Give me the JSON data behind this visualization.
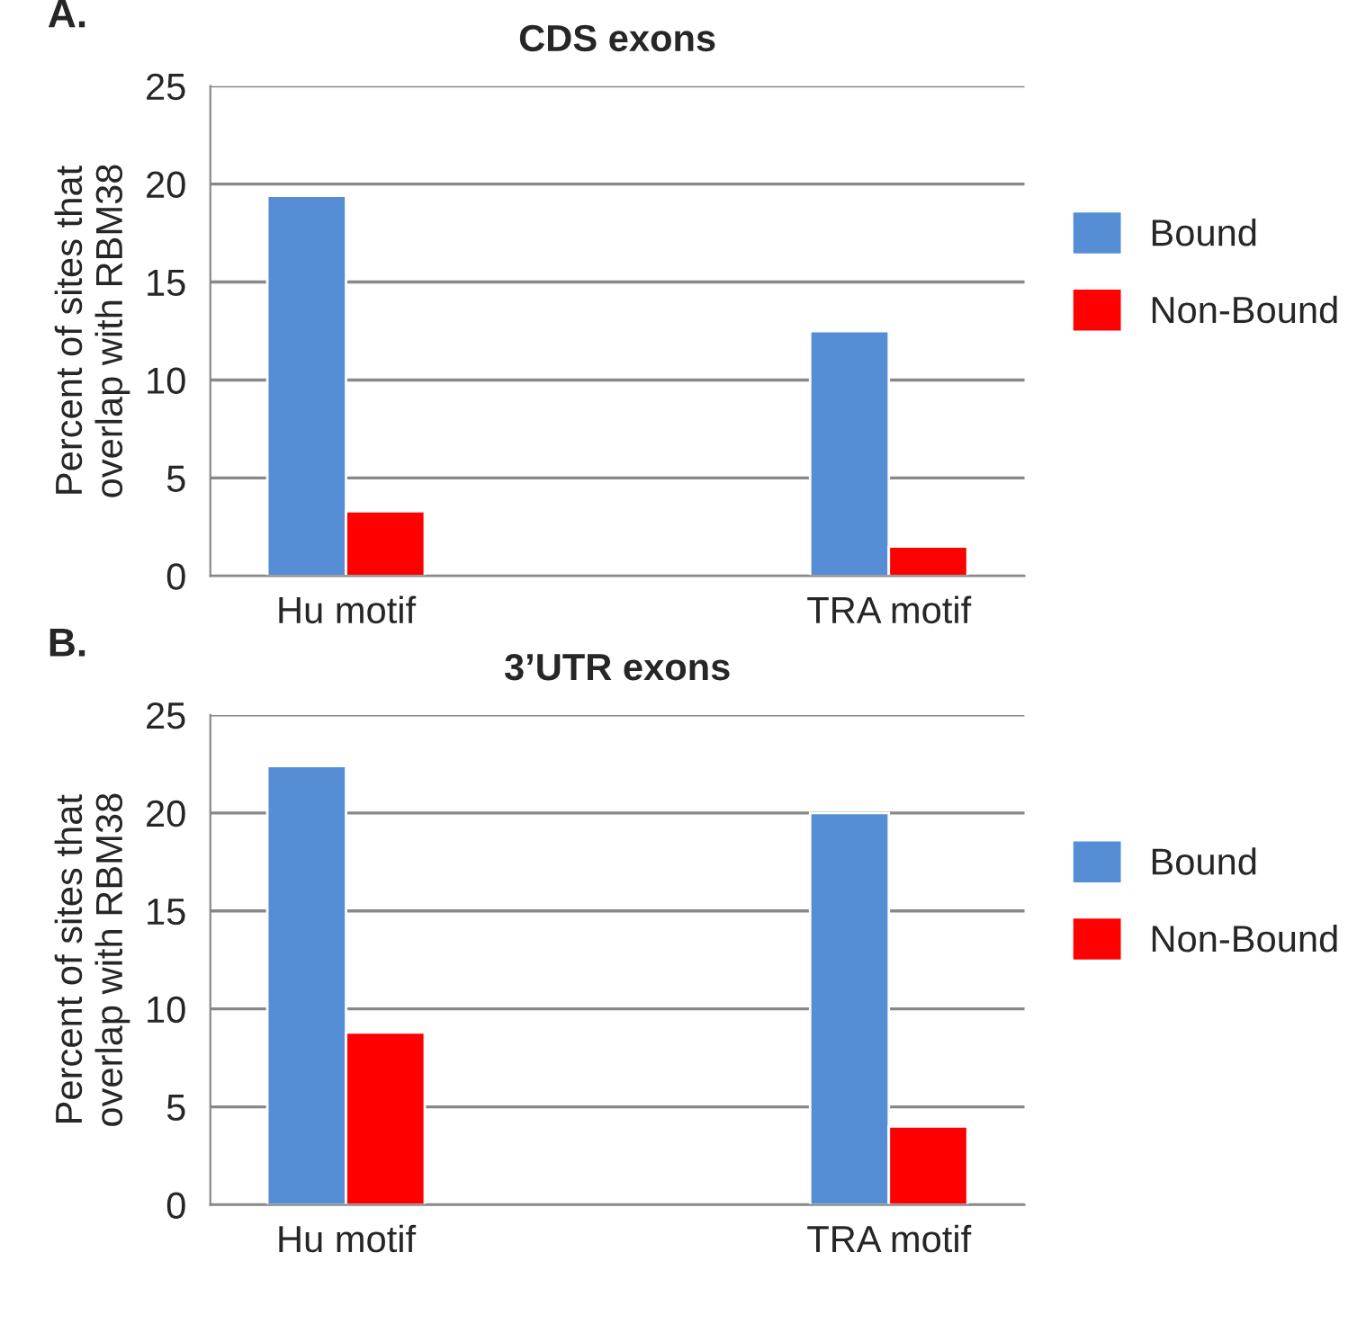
{
  "chart_data": [
    {
      "type": "bar",
      "title": "CDS exons",
      "ylabel": "Percent of sites that\noverlap with RBM38",
      "annotations": [
        "A."
      ],
      "categories": [
        "Hu motif",
        null,
        "TRA motif"
      ],
      "series": [
        {
          "name": "Bound",
          "color": "#558ed5",
          "values": [
            19.4,
            null,
            12.5
          ]
        },
        {
          "name": "Non-Bound",
          "color": "#ff0000",
          "values": [
            3.3,
            null,
            1.5
          ]
        }
      ],
      "ylim": [
        0,
        25
      ],
      "yticks": [
        0,
        5,
        10,
        15,
        20,
        25
      ],
      "grid": "y",
      "legend": "right"
    },
    {
      "type": "bar",
      "title": "3’UTR exons",
      "ylabel": "Percent of sites that\noverlap with RBM38",
      "annotations": [
        "B."
      ],
      "categories": [
        "Hu motif",
        null,
        "TRA motif"
      ],
      "series": [
        {
          "name": "Bound",
          "color": "#558ed5",
          "values": [
            22.4,
            null,
            20.0
          ]
        },
        {
          "name": "Non-Bound",
          "color": "#ff0000",
          "values": [
            8.8,
            null,
            4.0
          ]
        }
      ],
      "ylim": [
        0,
        25
      ],
      "yticks": [
        0,
        5,
        10,
        15,
        20,
        25
      ],
      "grid": "y",
      "legend": "right"
    }
  ]
}
